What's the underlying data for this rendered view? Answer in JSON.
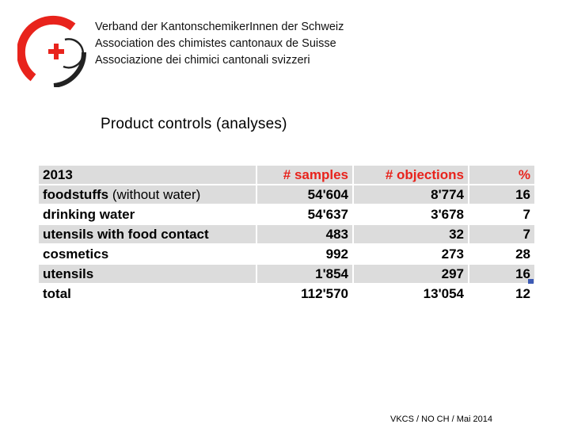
{
  "organization": {
    "lines": [
      "Verband der KantonschemikerInnen der Schweiz",
      "Association des chimistes cantonaux de Suisse",
      "Associazione dei chimici cantonali svizzeri"
    ]
  },
  "colors": {
    "logo_red": "#e8231c",
    "logo_dark": "#222222",
    "header_red": "#e8231c",
    "row_shade": "#dcdcdc",
    "marker_blue": "#3c5ab4"
  },
  "title": "Product controls (analyses)",
  "table": {
    "header": {
      "year": "2013",
      "samples": "# samples",
      "objections": "# objections",
      "percent": "%"
    },
    "rows": [
      {
        "label": "foodstuffs",
        "note": " (without water)",
        "samples": "54'604",
        "objections": "8'774",
        "percent": "16"
      },
      {
        "label": "drinking water",
        "note": "",
        "samples": "54'637",
        "objections": "3'678",
        "percent": "7"
      },
      {
        "label": "utensils with food contact",
        "note": "",
        "samples": "483",
        "objections": "32",
        "percent": "7"
      },
      {
        "label": "cosmetics",
        "note": "",
        "samples": "992",
        "objections": "273",
        "percent": "28"
      },
      {
        "label": "utensils",
        "note": "",
        "samples": "1'854",
        "objections": "297",
        "percent": "16"
      },
      {
        "label": "total",
        "note": "",
        "samples": "112'570",
        "objections": "13'054",
        "percent": "12"
      }
    ]
  },
  "footer": "VKCS / NO CH / Mai 2014"
}
